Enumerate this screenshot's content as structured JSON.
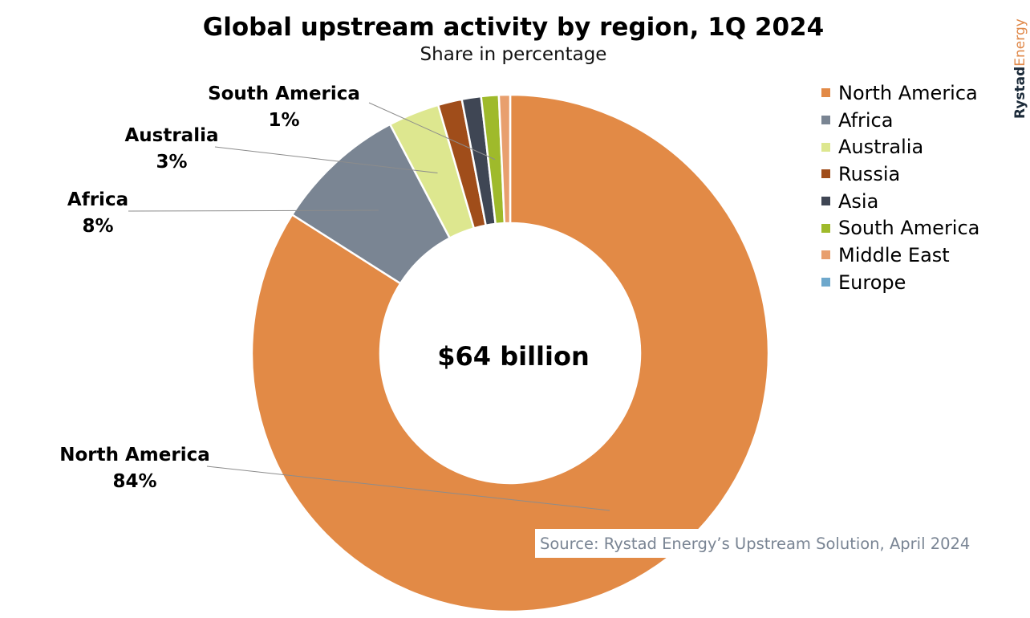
{
  "header": {
    "title": "Global upstream activity by region, 1Q 2024",
    "subtitle": "Share in percentage"
  },
  "brand": {
    "part1": "Rystad",
    "part2": "Energy"
  },
  "center_label": "$64 billion",
  "source": "Source: Rystad Energy’s Upstream Solution, April 2024",
  "chart_data": {
    "type": "pie",
    "donut": true,
    "title": "Global upstream activity by region, 1Q 2024",
    "subtitle": "Share in percentage",
    "center_text": "$64 billion",
    "legend_position": "right",
    "slices": [
      {
        "name": "North America",
        "value": 84.0,
        "color": "#e28a46",
        "label": "North America",
        "pct_label": "84%"
      },
      {
        "name": "Africa",
        "value": 8.3,
        "color": "#7a8593",
        "label": "Africa",
        "pct_label": "8%"
      },
      {
        "name": "Australia",
        "value": 3.2,
        "color": "#dde78f",
        "label": "Australia",
        "pct_label": "3%"
      },
      {
        "name": "Russia",
        "value": 1.5,
        "color": "#a04d1a",
        "label": "",
        "pct_label": ""
      },
      {
        "name": "Asia",
        "value": 1.2,
        "color": "#3f4654",
        "label": "",
        "pct_label": ""
      },
      {
        "name": "South America",
        "value": 1.1,
        "color": "#9fba2b",
        "label": "South America",
        "pct_label": "1%"
      },
      {
        "name": "Middle East",
        "value": 0.7,
        "color": "#e89f6e",
        "label": "",
        "pct_label": ""
      },
      {
        "name": "Europe",
        "value": 0.0,
        "color": "#6ea8cc",
        "label": "",
        "pct_label": ""
      }
    ]
  }
}
